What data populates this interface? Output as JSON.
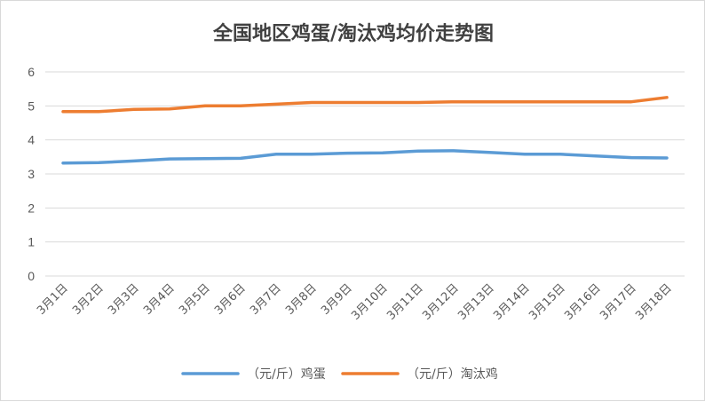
{
  "chart_data": {
    "type": "line",
    "title": "全国地区鸡蛋/淘汰鸡均价走势图",
    "categories": [
      "3月1日",
      "3月2日",
      "3月3日",
      "3月4日",
      "3月5日",
      "3月6日",
      "3月7日",
      "3月8日",
      "3月9日",
      "3月10日",
      "3月11日",
      "3月12日",
      "3月13日",
      "3月14日",
      "3月15日",
      "3月16日",
      "3月17日",
      "3月18日"
    ],
    "series": [
      {
        "name": "（元/斤）鸡蛋",
        "color": "#5b9bd5",
        "values": [
          3.32,
          3.33,
          3.38,
          3.44,
          3.45,
          3.46,
          3.58,
          3.58,
          3.61,
          3.62,
          3.67,
          3.68,
          3.63,
          3.58,
          3.58,
          3.53,
          3.48,
          3.47
        ]
      },
      {
        "name": "（元/斤）淘汰鸡",
        "color": "#ed7d31",
        "values": [
          4.83,
          4.83,
          4.9,
          4.91,
          5.0,
          5.0,
          5.05,
          5.1,
          5.1,
          5.1,
          5.1,
          5.12,
          5.12,
          5.12,
          5.12,
          5.12,
          5.12,
          5.25
        ]
      }
    ],
    "y_ticks": [
      "0",
      "1",
      "2",
      "3",
      "4",
      "5",
      "6"
    ],
    "ylim": [
      0,
      6
    ],
    "grid": true,
    "legend_position": "bottom"
  }
}
